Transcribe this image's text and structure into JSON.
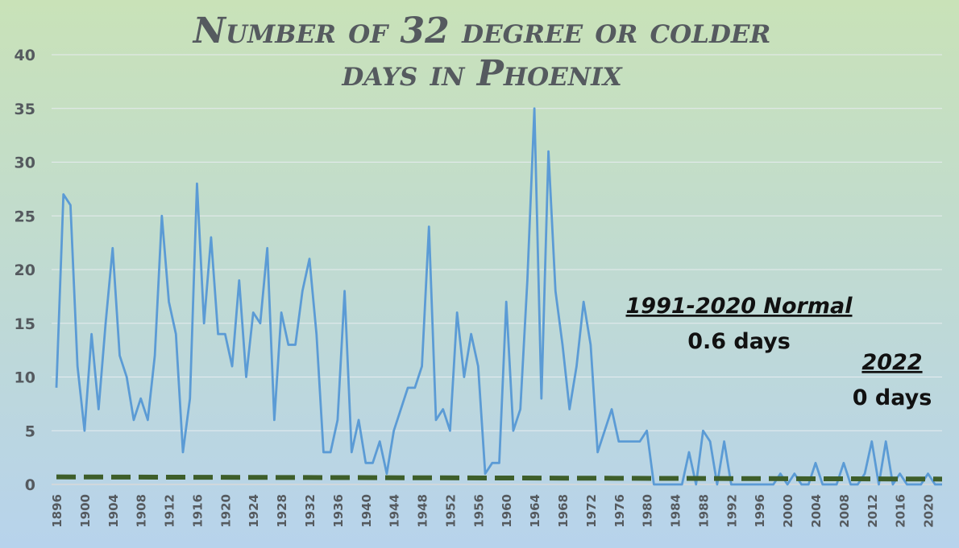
{
  "chart_data": {
    "type": "line",
    "title_lines": [
      "Number of 32 degree or colder",
      "days in Phoenix"
    ],
    "xlabel": "",
    "ylabel": "",
    "ylim": [
      0,
      40
    ],
    "yticks": [
      0,
      5,
      10,
      15,
      20,
      25,
      30,
      35,
      40
    ],
    "xticks": [
      1896,
      1900,
      1904,
      1908,
      1912,
      1916,
      1920,
      1924,
      1928,
      1932,
      1936,
      1940,
      1944,
      1948,
      1952,
      1956,
      1960,
      1964,
      1968,
      1972,
      1976,
      1980,
      1984,
      1988,
      1992,
      1996,
      2000,
      2004,
      2008,
      2012,
      2016,
      2020
    ],
    "xlim": [
      1896,
      2022
    ],
    "grid": true,
    "series": [
      {
        "color": "#5b9bd5",
        "x": [
          1896,
          1897,
          1898,
          1899,
          1900,
          1901,
          1902,
          1903,
          1904,
          1905,
          1906,
          1907,
          1908,
          1909,
          1910,
          1911,
          1912,
          1913,
          1914,
          1915,
          1916,
          1917,
          1918,
          1919,
          1920,
          1921,
          1922,
          1923,
          1924,
          1925,
          1926,
          1927,
          1928,
          1929,
          1930,
          1931,
          1932,
          1933,
          1934,
          1935,
          1936,
          1937,
          1938,
          1939,
          1940,
          1941,
          1942,
          1943,
          1944,
          1945,
          1946,
          1947,
          1948,
          1949,
          1950,
          1951,
          1952,
          1953,
          1954,
          1955,
          1956,
          1957,
          1958,
          1959,
          1960,
          1961,
          1962,
          1963,
          1964,
          1965,
          1966,
          1967,
          1968,
          1969,
          1970,
          1971,
          1972,
          1973,
          1974,
          1975,
          1976,
          1977,
          1978,
          1979,
          1980,
          1981,
          1982,
          1983,
          1984,
          1985,
          1986,
          1987,
          1988,
          1989,
          1990,
          1991,
          1992,
          1993,
          1994,
          1995,
          1996,
          1997,
          1998,
          1999,
          2000,
          2001,
          2002,
          2003,
          2004,
          2005,
          2006,
          2007,
          2008,
          2009,
          2010,
          2011,
          2012,
          2013,
          2014,
          2015,
          2016,
          2017,
          2018,
          2019,
          2020,
          2021,
          2022
        ],
        "values": [
          9,
          27,
          26,
          11,
          5,
          14,
          7,
          15,
          22,
          12,
          10,
          6,
          8,
          6,
          12,
          25,
          17,
          14,
          3,
          8,
          28,
          15,
          23,
          14,
          14,
          11,
          19,
          10,
          16,
          15,
          22,
          6,
          16,
          13,
          13,
          18,
          21,
          14,
          3,
          3,
          6,
          18,
          3,
          6,
          2,
          2,
          4,
          1,
          5,
          7,
          9,
          9,
          11,
          24,
          6,
          7,
          5,
          16,
          10,
          14,
          11,
          1,
          2,
          2,
          17,
          5,
          7,
          19,
          35,
          8,
          31,
          18,
          13,
          7,
          11,
          17,
          13,
          3,
          5,
          7,
          4,
          4,
          4,
          4,
          5,
          0,
          0,
          0,
          0,
          0,
          3,
          0,
          5,
          4,
          0,
          4,
          0,
          0,
          0,
          0,
          0,
          0,
          0,
          1,
          0,
          1,
          0,
          0,
          2,
          0,
          0,
          0,
          2,
          0,
          0,
          1,
          4,
          0,
          4,
          0,
          1,
          0,
          0,
          0,
          1,
          0,
          0
        ]
      },
      {
        "color": "#3e5e2a",
        "style": "dashed",
        "x": [
          1896,
          2022
        ],
        "values": [
          0.7,
          0.5
        ]
      }
    ],
    "annotations": [
      {
        "head": "1991-2020 Normal",
        "value": "0.6 days"
      },
      {
        "head": "2022",
        "value": "0 days"
      }
    ]
  }
}
